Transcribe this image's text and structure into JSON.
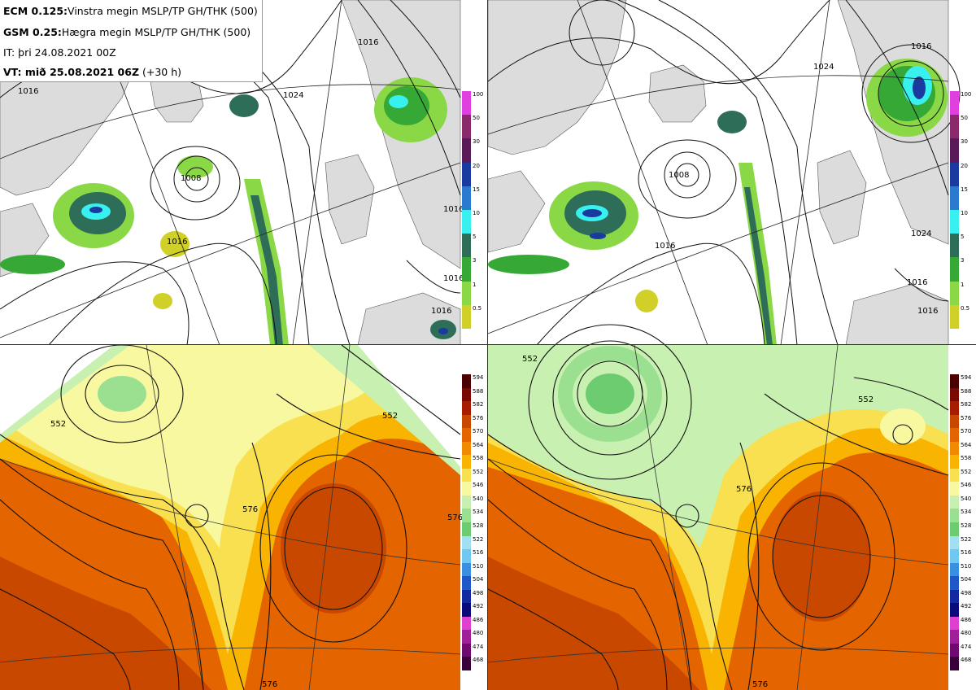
{
  "header": {
    "ecm_model": "ECM 0.125:",
    "ecm_desc": "Vinstra megin MSLP/TP GH/THK (500)",
    "gsm_model": "GSM 0.25:",
    "gsm_desc": "Hægra megin MSLP/TP GH/THK (500)",
    "init_time": "IT: þri 24.08.2021 00Z",
    "valid_label": "VT: mið 25.08.2021 06Z",
    "valid_offset": "(+30 h)"
  },
  "precip_scale": {
    "labels": [
      "100",
      "50",
      "30",
      "20",
      "15",
      "10",
      "5",
      "3",
      "1",
      "0.5"
    ],
    "colors": [
      "#e040e0",
      "#8a2a6a",
      "#5a1a5a",
      "#1a3aa0",
      "#2a7ad0",
      "#38f0f0",
      "#2e6e58",
      "#36a836",
      "#8ad846",
      "#d0d028"
    ]
  },
  "thickness_scale": {
    "labels": [
      "594",
      "588",
      "582",
      "576",
      "570",
      "564",
      "558",
      "552",
      "546",
      "540",
      "534",
      "528",
      "522",
      "516",
      "510",
      "504",
      "498",
      "492",
      "486",
      "480",
      "474",
      "468"
    ],
    "colors": [
      "#4a0000",
      "#7a0a00",
      "#a81c00",
      "#c84800",
      "#e46400",
      "#f08a00",
      "#f8b400",
      "#f8e050",
      "#f8f8a0",
      "#c8f0b0",
      "#9ae090",
      "#6ecc70",
      "#a0e0f0",
      "#70c8f0",
      "#3a90e0",
      "#1e58c8",
      "#1428a0",
      "#0a0a78",
      "#e040d0",
      "#a0209a",
      "#700a70",
      "#3a003a"
    ]
  },
  "contours": {
    "tl": [
      "1016",
      "1024",
      "1016",
      "1016",
      "1008",
      "1016",
      "1016",
      "1016"
    ],
    "tr": [
      "1008",
      "1024",
      "1016",
      "1016",
      "1024",
      "1016",
      "1016"
    ],
    "bl": [
      "552",
      "576",
      "552",
      "576",
      "576"
    ],
    "br": [
      "552",
      "552",
      "576",
      "576"
    ]
  }
}
